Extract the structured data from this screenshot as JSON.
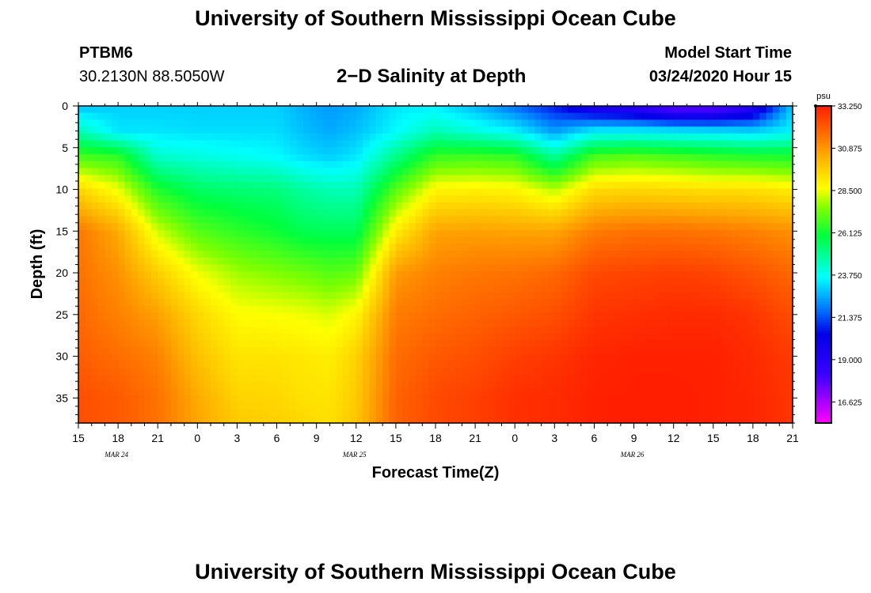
{
  "header": {
    "title": "University of Southern Mississippi Ocean Cube",
    "station": "PTBM6",
    "coords": "30.2130N 88.5050W",
    "subtitle": "2−D Salinity at Depth",
    "model_start_label": "Model Start Time",
    "model_start_value": "03/24/2020 Hour 15"
  },
  "footer": {
    "title": "University of Southern Mississippi Ocean Cube"
  },
  "chart_data": {
    "type": "heatmap",
    "title": "2−D Salinity at Depth",
    "xlabel": "Forecast Time(Z)",
    "ylabel": "Depth (ft)",
    "x_tick_labels": [
      "15",
      "18",
      "21",
      "0",
      "3",
      "6",
      "9",
      "12",
      "15",
      "18",
      "21",
      "0",
      "3",
      "6",
      "9",
      "12",
      "15",
      "18",
      "21"
    ],
    "x_date_labels": [
      {
        "label": "MAR 24",
        "tick_index": 1
      },
      {
        "label": "MAR 25",
        "tick_index": 7
      },
      {
        "label": "MAR 26",
        "tick_index": 14
      }
    ],
    "y_ticks": [
      0,
      5,
      10,
      15,
      20,
      25,
      30,
      35
    ],
    "ylim": [
      38,
      0
    ],
    "xlim_hours": [
      0,
      54
    ],
    "colorbar": {
      "units": "psu",
      "range": [
        15.44,
        33.25
      ],
      "tick_labels": [
        "33.250",
        "30.875",
        "28.500",
        "26.125",
        "23.750",
        "21.375",
        "19.000",
        "16.625"
      ],
      "tick_values": [
        33.25,
        30.875,
        28.5,
        26.125,
        23.75,
        21.375,
        19.0,
        16.625
      ]
    },
    "depth_levels_ft": [
      0,
      3,
      6,
      10,
      15,
      20,
      25,
      30,
      35,
      38
    ],
    "profile_times_hours": [
      0,
      3,
      6,
      9,
      12,
      15,
      17,
      19,
      21,
      24,
      27,
      30,
      33,
      36,
      39,
      42,
      45,
      48,
      51,
      54
    ],
    "salinity_profiles": [
      [
        22.8,
        24.5,
        26.8,
        29.5,
        31.5,
        31.6,
        31.8,
        32.0,
        32.3,
        32.3
      ],
      [
        23.0,
        23.3,
        26.5,
        28.5,
        30.5,
        31.0,
        31.3,
        31.7,
        32.1,
        32.1
      ],
      [
        23.0,
        23.3,
        24.2,
        26.3,
        28.2,
        29.7,
        30.7,
        31.3,
        31.6,
        31.6
      ],
      [
        23.0,
        23.2,
        24.0,
        25.5,
        27.0,
        28.5,
        29.5,
        30.0,
        30.5,
        30.6
      ],
      [
        23.0,
        23.2,
        23.8,
        25.3,
        26.5,
        27.8,
        28.7,
        29.2,
        29.6,
        29.8
      ],
      [
        23.0,
        23.2,
        23.6,
        25.2,
        26.1,
        27.5,
        28.6,
        29.2,
        29.5,
        29.7
      ],
      [
        22.6,
        22.8,
        23.2,
        24.8,
        25.7,
        27.3,
        28.5,
        29.1,
        29.3,
        29.5
      ],
      [
        22.3,
        22.5,
        23.0,
        24.5,
        25.6,
        27.0,
        28.3,
        29.0,
        29.2,
        29.3
      ],
      [
        22.5,
        22.8,
        23.3,
        24.5,
        25.6,
        27.2,
        28.8,
        29.6,
        29.8,
        29.9
      ],
      [
        23.3,
        23.6,
        25.0,
        27.0,
        29.0,
        30.8,
        31.4,
        31.7,
        31.9,
        31.9
      ],
      [
        23.4,
        24.5,
        26.6,
        28.8,
        30.6,
        31.3,
        31.7,
        32.1,
        32.4,
        32.4
      ],
      [
        22.7,
        24.0,
        26.7,
        28.9,
        30.7,
        31.5,
        31.9,
        32.3,
        32.6,
        32.6
      ],
      [
        21.7,
        23.5,
        26.5,
        28.8,
        30.6,
        31.6,
        32.1,
        32.6,
        32.9,
        32.9
      ],
      [
        20.7,
        22.3,
        24.8,
        28.0,
        30.6,
        31.8,
        32.3,
        32.8,
        33.0,
        33.0
      ],
      [
        19.1,
        23.4,
        26.8,
        29.4,
        31.4,
        32.4,
        32.8,
        33.1,
        33.2,
        33.2
      ],
      [
        18.6,
        23.4,
        27.0,
        29.5,
        31.6,
        32.5,
        32.9,
        33.2,
        33.25,
        33.25
      ],
      [
        17.2,
        23.3,
        26.8,
        29.4,
        31.6,
        32.6,
        33.0,
        33.2,
        33.25,
        33.25
      ],
      [
        17.2,
        23.2,
        26.5,
        29.3,
        31.5,
        32.5,
        33.0,
        33.2,
        33.2,
        33.2
      ],
      [
        18.8,
        23.0,
        26.3,
        29.3,
        31.3,
        32.2,
        32.8,
        33.0,
        33.1,
        33.1
      ],
      [
        23.0,
        23.5,
        26.2,
        29.0,
        31.0,
        31.8,
        32.3,
        32.7,
        32.8,
        32.8
      ]
    ]
  }
}
